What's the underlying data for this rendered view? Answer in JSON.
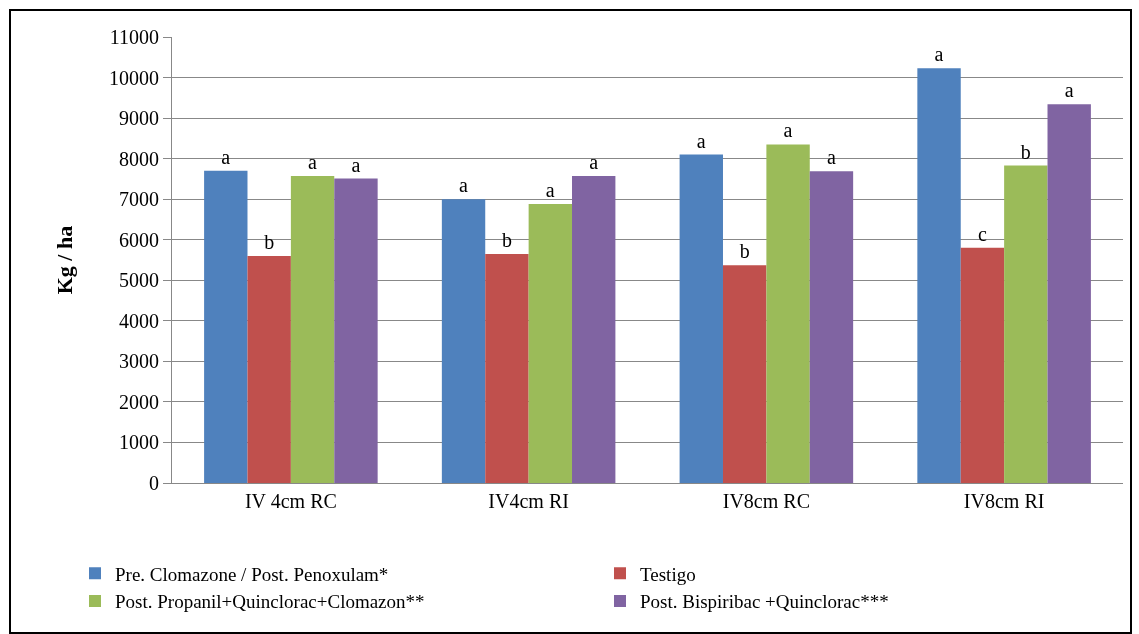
{
  "chart_data": {
    "type": "bar",
    "ylabel": "Kg / ha",
    "categories": [
      "IV 4cm RC",
      "IV4cm RI",
      "IV8cm RC",
      "IV8cm RI"
    ],
    "series": [
      {
        "name": "Pre. Clomazone / Post. Penoxulam*",
        "color": "#4f81bd",
        "values": [
          7700,
          7000,
          8100,
          10230
        ],
        "value_labels": [
          "a",
          "a",
          "a",
          "a"
        ]
      },
      {
        "name": "Testigo",
        "color": "#c0504d",
        "values": [
          5600,
          5650,
          5370,
          5800
        ],
        "value_labels": [
          "b",
          "b",
          "b",
          "c"
        ]
      },
      {
        "name": "Post. Propanil+Quinclorac+Clomazon**",
        "color": "#9bbb59",
        "values": [
          7570,
          6880,
          8350,
          7830
        ],
        "value_labels": [
          "a",
          "a",
          "a",
          "b"
        ]
      },
      {
        "name": "Post. Bispiribac +Quinclorac***",
        "color": "#8064a2",
        "values": [
          7510,
          7570,
          7690,
          9340
        ],
        "value_labels": [
          "a",
          "a",
          "a",
          "a"
        ]
      }
    ],
    "ylim": [
      0,
      11000
    ],
    "yticks": [
      0,
      1000,
      2000,
      3000,
      4000,
      5000,
      6000,
      7000,
      8000,
      9000,
      10000,
      11000
    ],
    "grid": "y",
    "legend": "bottom"
  }
}
